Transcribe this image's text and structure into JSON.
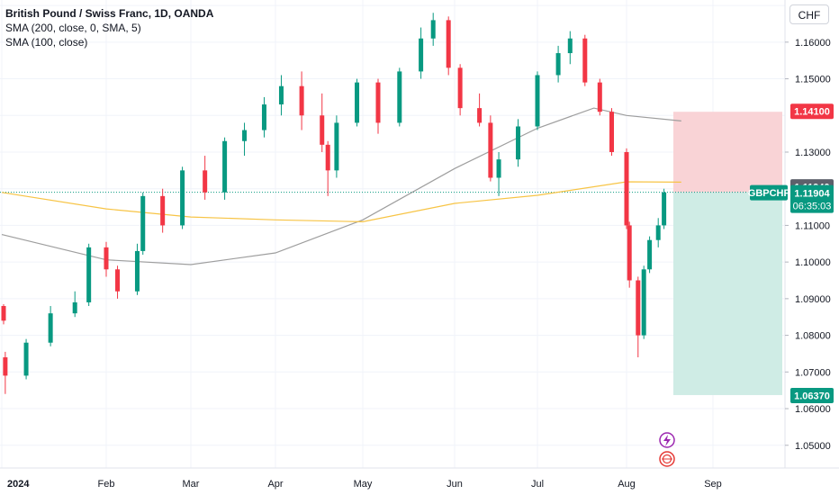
{
  "legend": {
    "title": "British Pound / Swiss Franc, 1D, OANDA",
    "sma200": "SMA (200, close, 0, SMA, 5)",
    "sma100": "SMA (100, close)"
  },
  "currency_button": "CHF",
  "price_labels": {
    "stop": "1.14100",
    "sma_level": "1.11940",
    "symbol": "GBPCHF",
    "last": "1.11904",
    "countdown": "06:35:03",
    "target": "1.06370"
  },
  "colors": {
    "up": "#089981",
    "down": "#f23645",
    "sma200": "#9e9e9e",
    "sma100": "#f7c445",
    "stop_zone": "#f9d3d6",
    "target_zone": "#cfece5",
    "last_price": "#089981",
    "stop_label": "#f23645",
    "sma_label": "#5d606b"
  },
  "chart_data": {
    "type": "candlestick",
    "title": "British Pound / Swiss Franc, 1D, OANDA",
    "symbol": "GBPCHF",
    "timeframe": "1D",
    "y_axis_ticks": [
      "1.16000",
      "1.15000",
      "1.13000",
      "1.11000",
      "1.10000",
      "1.09000",
      "1.08000",
      "1.07000",
      "1.06000",
      "1.05000"
    ],
    "x_axis_ticks": [
      "2024",
      "Feb",
      "Mar",
      "Apr",
      "May",
      "Jun",
      "Jul",
      "Aug",
      "Sep"
    ],
    "ylim": [
      1.0438,
      1.1715
    ],
    "series": [
      {
        "name": "SMA (200, close, 0, SMA, 5)",
        "color": "#9e9e9e",
        "points": [
          [
            "2024",
            1.1075
          ],
          [
            "Feb",
            1.1006
          ],
          [
            "Mar",
            1.0993
          ],
          [
            "Apr",
            1.1025
          ],
          [
            "May",
            1.1115
          ],
          [
            "Jun",
            1.1255
          ],
          [
            "Jul",
            1.1365
          ],
          [
            "Jul 20",
            1.142
          ],
          [
            "Aug",
            1.14
          ],
          [
            "Aug 20",
            1.1385
          ]
        ]
      },
      {
        "name": "SMA (100, close)",
        "color": "#f7c445",
        "points": [
          [
            "2024",
            1.119
          ],
          [
            "Feb",
            1.1145
          ],
          [
            "Mar",
            1.1123
          ],
          [
            "Apr",
            1.1115
          ],
          [
            "May",
            1.111
          ],
          [
            "Jun",
            1.116
          ],
          [
            "Jul",
            1.1182
          ],
          [
            "Aug",
            1.1219
          ],
          [
            "Aug 20",
            1.1218
          ]
        ]
      }
    ],
    "candles": [
      [
        "Dec 28",
        1.088,
        1.0885,
        1.083,
        1.084
      ],
      [
        "Jan 2",
        1.074,
        1.0755,
        1.064,
        1.069
      ],
      [
        "Jan 8",
        1.069,
        1.079,
        1.068,
        1.078
      ],
      [
        "Jan 15",
        1.078,
        1.088,
        1.077,
        1.086
      ],
      [
        "Jan 22",
        1.086,
        1.092,
        1.085,
        1.089
      ],
      [
        "Jan 26",
        1.089,
        1.105,
        1.088,
        1.104
      ],
      [
        "Jan 31",
        1.104,
        1.1055,
        1.096,
        1.098
      ],
      [
        "Feb 5",
        1.098,
        1.099,
        1.09,
        1.092
      ],
      [
        "Feb 12",
        1.092,
        1.105,
        1.091,
        1.103
      ],
      [
        "Feb 14",
        1.103,
        1.119,
        1.102,
        1.118
      ],
      [
        "Feb 21",
        1.118,
        1.12,
        1.108,
        1.11
      ],
      [
        "Feb 28",
        1.11,
        1.126,
        1.109,
        1.125
      ],
      [
        "Mar 6",
        1.125,
        1.129,
        1.117,
        1.119
      ],
      [
        "Mar 13",
        1.119,
        1.134,
        1.117,
        1.133
      ],
      [
        "Mar 20",
        1.133,
        1.138,
        1.129,
        1.136
      ],
      [
        "Mar 27",
        1.136,
        1.145,
        1.134,
        1.143
      ],
      [
        "Apr 3",
        1.143,
        1.151,
        1.14,
        1.148
      ],
      [
        "Apr 10",
        1.148,
        1.152,
        1.136,
        1.14
      ],
      [
        "Apr 17",
        1.14,
        1.146,
        1.13,
        1.132
      ],
      [
        "Apr 19",
        1.132,
        1.133,
        1.118,
        1.125
      ],
      [
        "Apr 22",
        1.125,
        1.14,
        1.123,
        1.138
      ],
      [
        "Apr 29",
        1.138,
        1.15,
        1.137,
        1.149
      ],
      [
        "May 6",
        1.149,
        1.15,
        1.135,
        1.138
      ],
      [
        "May 13",
        1.138,
        1.153,
        1.137,
        1.152
      ],
      [
        "May 20",
        1.152,
        1.164,
        1.15,
        1.161
      ],
      [
        "May 24",
        1.161,
        1.168,
        1.159,
        1.166
      ],
      [
        "May 29",
        1.166,
        1.167,
        1.151,
        1.153
      ],
      [
        "Jun 3",
        1.153,
        1.154,
        1.14,
        1.142
      ],
      [
        "Jun 10",
        1.142,
        1.146,
        1.137,
        1.138
      ],
      [
        "Jun 14",
        1.138,
        1.14,
        1.122,
        1.123
      ],
      [
        "Jun 17",
        1.123,
        1.13,
        1.118,
        1.128
      ],
      [
        "Jun 24",
        1.128,
        1.139,
        1.126,
        1.137
      ],
      [
        "Jul 1",
        1.137,
        1.152,
        1.136,
        1.151
      ],
      [
        "Jul 8",
        1.151,
        1.159,
        1.149,
        1.157
      ],
      [
        "Jul 12",
        1.157,
        1.163,
        1.154,
        1.161
      ],
      [
        "Jul 17",
        1.161,
        1.162,
        1.148,
        1.149
      ],
      [
        "Jul 22",
        1.149,
        1.15,
        1.14,
        1.141
      ],
      [
        "Jul 26",
        1.141,
        1.142,
        1.129,
        1.13
      ],
      [
        "Jul 31",
        1.13,
        1.131,
        1.109,
        1.11
      ],
      [
        "Aug 2",
        1.11,
        1.111,
        1.093,
        1.095
      ],
      [
        "Aug 5",
        1.095,
        1.096,
        1.074,
        1.08
      ],
      [
        "Aug 7",
        1.08,
        1.099,
        1.079,
        1.098
      ],
      [
        "Aug 9",
        1.098,
        1.107,
        1.097,
        1.106
      ],
      [
        "Aug 12",
        1.106,
        1.112,
        1.104,
        1.11
      ],
      [
        "Aug 14",
        1.11,
        1.12,
        1.109,
        1.119
      ]
    ],
    "candle_fields": [
      "date",
      "open",
      "high",
      "low",
      "close"
    ],
    "position": {
      "entry": 1.11904,
      "stop": 1.141,
      "target": 1.0637
    },
    "last_price": 1.11904,
    "sma_level_label": 1.1194,
    "grid": true
  }
}
